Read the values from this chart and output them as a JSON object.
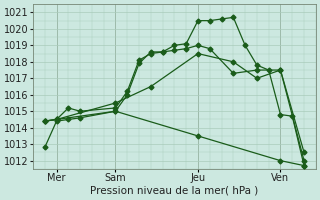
{
  "title": "",
  "xlabel": "Pression niveau de la mer( hPa )",
  "ylabel": "",
  "background_color": "#cce8e0",
  "grid_color": "#aaccbb",
  "line_color": "#1a5c1a",
  "ylim": [
    1011.5,
    1021.5
  ],
  "xlim": [
    0,
    12
  ],
  "yticks": [
    1012,
    1013,
    1014,
    1015,
    1016,
    1017,
    1018,
    1019,
    1020,
    1021
  ],
  "xtick_labels": [
    "Mer",
    "Sam",
    "Jeu",
    "Ven"
  ],
  "xtick_positions": [
    1,
    3.5,
    7,
    10.5
  ],
  "vline_positions": [
    1,
    3.5,
    7,
    10.5
  ],
  "series": [
    {
      "x": [
        0.5,
        1.0,
        1.5,
        2.0,
        3.5,
        4.0,
        4.5,
        5.0,
        5.5,
        6.0,
        6.5,
        7.0,
        7.5,
        8.0,
        8.5,
        9.0,
        9.5,
        10.0,
        10.5,
        11.0,
        11.5
      ],
      "y": [
        1012.8,
        1014.4,
        1014.5,
        1014.6,
        1015.0,
        1016.0,
        1017.9,
        1018.6,
        1018.6,
        1019.0,
        1019.1,
        1020.5,
        1020.5,
        1020.6,
        1020.7,
        1019.0,
        1017.8,
        1017.5,
        1014.8,
        1014.7,
        1011.7
      ]
    },
    {
      "x": [
        0.5,
        1.0,
        1.5,
        2.0,
        3.5,
        4.0,
        4.5,
        5.0,
        5.5,
        6.0,
        6.5,
        7.0,
        7.5,
        8.5,
        9.5,
        10.5,
        11.5
      ],
      "y": [
        1014.4,
        1014.5,
        1015.2,
        1015.0,
        1015.2,
        1016.2,
        1018.1,
        1018.5,
        1018.6,
        1018.7,
        1018.8,
        1019.0,
        1018.8,
        1017.3,
        1017.5,
        1017.5,
        1012.0
      ]
    },
    {
      "x": [
        0.5,
        1.0,
        3.5,
        5.0,
        7.0,
        8.5,
        9.5,
        10.5,
        11.5
      ],
      "y": [
        1014.4,
        1014.5,
        1015.5,
        1016.5,
        1018.5,
        1018.0,
        1017.0,
        1017.5,
        1012.5
      ]
    },
    {
      "x": [
        0.5,
        1.0,
        3.5,
        7.0,
        10.5,
        11.5
      ],
      "y": [
        1014.4,
        1014.5,
        1015.0,
        1013.5,
        1012.0,
        1011.7
      ]
    }
  ]
}
